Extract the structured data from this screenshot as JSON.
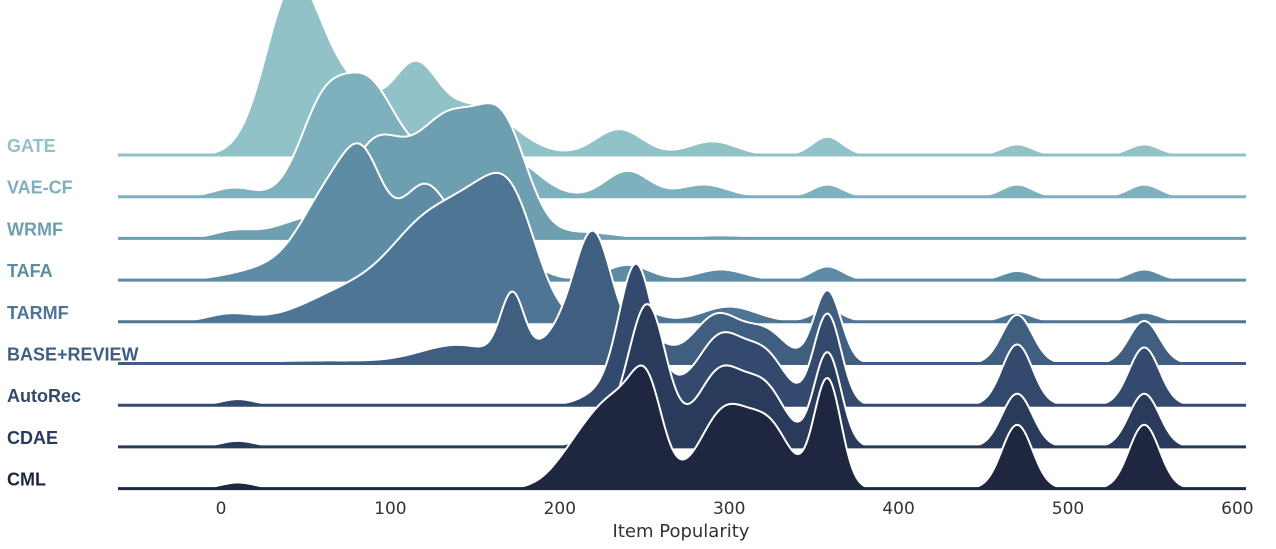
{
  "chart_data": {
    "type": "area",
    "subtype": "ridgeline",
    "title": "",
    "xlabel": "Item Popularity",
    "ylabel": "",
    "xlim": [
      -60,
      600
    ],
    "xticks": [
      0,
      100,
      200,
      300,
      400,
      500,
      600
    ],
    "grid": false,
    "legend": "none",
    "label_placement": "left of each ridge",
    "series": [
      {
        "name": "GATE",
        "color": "#91c2c8",
        "peaks": [
          {
            "x": 42,
            "h": 1.0,
            "w": 16
          },
          {
            "x": 75,
            "h": 0.42,
            "w": 22
          },
          {
            "x": 115,
            "h": 0.45,
            "w": 13
          },
          {
            "x": 150,
            "h": 0.32,
            "w": 22
          },
          {
            "x": 235,
            "h": 0.17,
            "w": 14
          },
          {
            "x": 290,
            "h": 0.09,
            "w": 14
          },
          {
            "x": 358,
            "h": 0.12,
            "w": 9
          },
          {
            "x": 470,
            "h": 0.07,
            "w": 9
          },
          {
            "x": 545,
            "h": 0.07,
            "w": 9
          }
        ]
      },
      {
        "name": "VAE-CF",
        "color": "#7fb0bd",
        "peaks": [
          {
            "x": 8,
            "h": 0.06,
            "w": 12
          },
          {
            "x": 60,
            "h": 0.55,
            "w": 14
          },
          {
            "x": 88,
            "h": 0.7,
            "w": 16
          },
          {
            "x": 120,
            "h": 0.2,
            "w": 13
          },
          {
            "x": 170,
            "h": 0.25,
            "w": 17
          },
          {
            "x": 240,
            "h": 0.17,
            "w": 13
          },
          {
            "x": 285,
            "h": 0.08,
            "w": 14
          },
          {
            "x": 358,
            "h": 0.08,
            "w": 9
          },
          {
            "x": 470,
            "h": 0.08,
            "w": 9
          },
          {
            "x": 545,
            "h": 0.08,
            "w": 9
          }
        ]
      },
      {
        "name": "WRMF",
        "color": "#6e9fb0",
        "peaks": [
          {
            "x": 8,
            "h": 0.05,
            "w": 12
          },
          {
            "x": 50,
            "h": 0.12,
            "w": 18
          },
          {
            "x": 90,
            "h": 0.55,
            "w": 16
          },
          {
            "x": 135,
            "h": 0.8,
            "w": 22
          },
          {
            "x": 168,
            "h": 0.55,
            "w": 14
          },
          {
            "x": 215,
            "h": 0.04,
            "w": 18
          },
          {
            "x": 295,
            "h": 0.02,
            "w": 18
          }
        ]
      },
      {
        "name": "TAFA",
        "color": "#5e8ca4",
        "peaks": [
          {
            "x": 30,
            "h": 0.08,
            "w": 22
          },
          {
            "x": 65,
            "h": 0.55,
            "w": 17
          },
          {
            "x": 85,
            "h": 0.55,
            "w": 12
          },
          {
            "x": 120,
            "h": 0.6,
            "w": 15
          },
          {
            "x": 160,
            "h": 0.28,
            "w": 18
          },
          {
            "x": 240,
            "h": 0.1,
            "w": 13
          },
          {
            "x": 295,
            "h": 0.07,
            "w": 14
          },
          {
            "x": 358,
            "h": 0.09,
            "w": 9
          },
          {
            "x": 470,
            "h": 0.06,
            "w": 9
          },
          {
            "x": 545,
            "h": 0.07,
            "w": 9
          }
        ]
      },
      {
        "name": "TARMF",
        "color": "#4e7594",
        "peaks": [
          {
            "x": 5,
            "h": 0.05,
            "w": 13
          },
          {
            "x": 80,
            "h": 0.22,
            "w": 28
          },
          {
            "x": 125,
            "h": 0.6,
            "w": 22
          },
          {
            "x": 172,
            "h": 0.72,
            "w": 15
          },
          {
            "x": 150,
            "h": 0.35,
            "w": 15
          },
          {
            "x": 245,
            "h": 0.08,
            "w": 12
          },
          {
            "x": 300,
            "h": 0.1,
            "w": 16
          },
          {
            "x": 358,
            "h": 0.08,
            "w": 9
          },
          {
            "x": 470,
            "h": 0.06,
            "w": 9
          },
          {
            "x": 545,
            "h": 0.06,
            "w": 9
          }
        ]
      },
      {
        "name": "BASE+REVIEW",
        "color": "#405e80",
        "peaks": [
          {
            "x": 60,
            "h": 0.02,
            "w": 40
          },
          {
            "x": 140,
            "h": 0.12,
            "w": 22
          },
          {
            "x": 172,
            "h": 0.42,
            "w": 7
          },
          {
            "x": 220,
            "h": 0.82,
            "w": 11
          },
          {
            "x": 200,
            "h": 0.18,
            "w": 12
          },
          {
            "x": 250,
            "h": 0.18,
            "w": 12
          },
          {
            "x": 293,
            "h": 0.32,
            "w": 14
          },
          {
            "x": 322,
            "h": 0.2,
            "w": 12
          },
          {
            "x": 358,
            "h": 0.48,
            "w": 8
          },
          {
            "x": 470,
            "h": 0.32,
            "w": 9
          },
          {
            "x": 545,
            "h": 0.28,
            "w": 9
          }
        ]
      },
      {
        "name": "AutoRec",
        "color": "#334a6e",
        "peaks": [
          {
            "x": 10,
            "h": 0.04,
            "w": 10
          },
          {
            "x": 225,
            "h": 0.08,
            "w": 12
          },
          {
            "x": 245,
            "h": 0.9,
            "w": 10
          },
          {
            "x": 265,
            "h": 0.08,
            "w": 10
          },
          {
            "x": 295,
            "h": 0.45,
            "w": 14
          },
          {
            "x": 322,
            "h": 0.3,
            "w": 12
          },
          {
            "x": 358,
            "h": 0.6,
            "w": 8
          },
          {
            "x": 470,
            "h": 0.4,
            "w": 9
          },
          {
            "x": 545,
            "h": 0.38,
            "w": 9
          }
        ]
      },
      {
        "name": "CDAE",
        "color": "#2a3a5a",
        "peaks": [
          {
            "x": 10,
            "h": 0.04,
            "w": 10
          },
          {
            "x": 230,
            "h": 0.12,
            "w": 14
          },
          {
            "x": 252,
            "h": 0.9,
            "w": 11
          },
          {
            "x": 295,
            "h": 0.5,
            "w": 14
          },
          {
            "x": 322,
            "h": 0.35,
            "w": 12
          },
          {
            "x": 358,
            "h": 0.62,
            "w": 8
          },
          {
            "x": 470,
            "h": 0.35,
            "w": 9
          },
          {
            "x": 545,
            "h": 0.35,
            "w": 9
          }
        ]
      },
      {
        "name": "CML",
        "color": "#1f2640",
        "peaks": [
          {
            "x": 10,
            "h": 0.04,
            "w": 10
          },
          {
            "x": 235,
            "h": 0.55,
            "w": 16
          },
          {
            "x": 252,
            "h": 0.45,
            "w": 9
          },
          {
            "x": 210,
            "h": 0.2,
            "w": 14
          },
          {
            "x": 298,
            "h": 0.52,
            "w": 15
          },
          {
            "x": 325,
            "h": 0.35,
            "w": 12
          },
          {
            "x": 358,
            "h": 0.72,
            "w": 8
          },
          {
            "x": 470,
            "h": 0.42,
            "w": 9
          },
          {
            "x": 545,
            "h": 0.42,
            "w": 9
          }
        ]
      }
    ]
  }
}
